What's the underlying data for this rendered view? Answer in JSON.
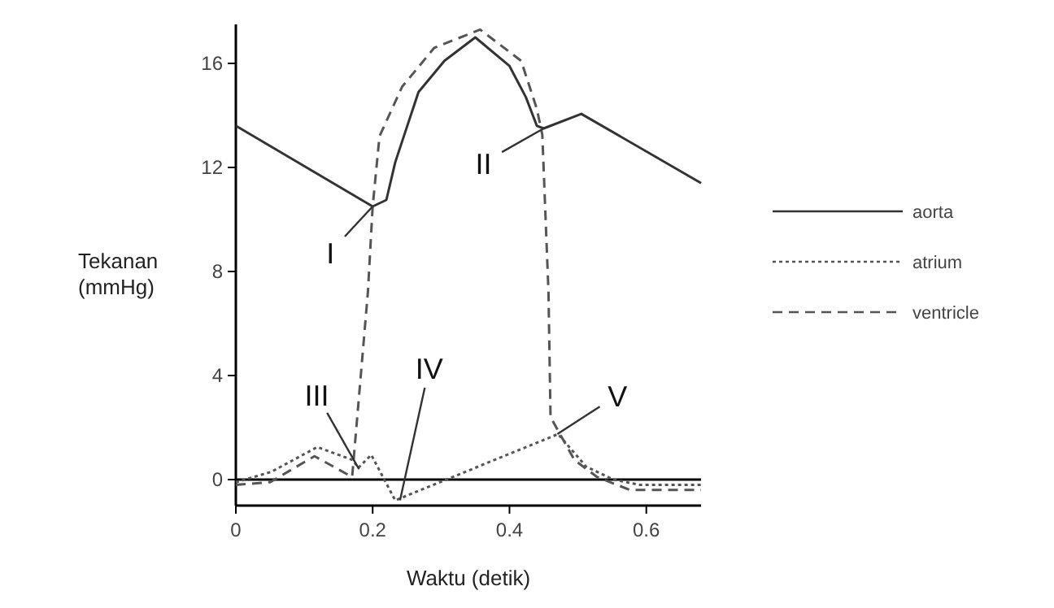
{
  "chart_data": {
    "type": "line",
    "xlabel": "Waktu (detik)",
    "ylabel": "Tekanan (mmHg)",
    "xlim": [
      0,
      0.68
    ],
    "ylim": [
      -1,
      17.5
    ],
    "xticks": [
      0,
      0.2,
      0.4,
      0.6
    ],
    "yticks": [
      0,
      4,
      8,
      12,
      16
    ],
    "grid": false,
    "legend": "right",
    "series": [
      {
        "name": "aorta",
        "color": "#333333",
        "line_style": "solid",
        "x": [
          0,
          0.2,
          0.22,
          0.233,
          0.267,
          0.305,
          0.35,
          0.4,
          0.424,
          0.44,
          0.45,
          0.505,
          0.68
        ],
        "values": [
          13.6,
          10.5,
          10.75,
          12.2,
          14.9,
          16.1,
          17.0,
          15.9,
          14.7,
          13.6,
          13.5,
          14.06,
          11.4
        ]
      },
      {
        "name": "atrium",
        "color": "#555555",
        "line_style": "dotted",
        "x": [
          0,
          0.052,
          0.119,
          0.171,
          0.179,
          0.198,
          0.233,
          0.471,
          0.512,
          0.552,
          0.59,
          0.68
        ],
        "values": [
          -0.1,
          0.3,
          1.25,
          0.75,
          0.45,
          0.95,
          -0.8,
          1.75,
          0.5,
          0,
          -0.2,
          -0.2
        ]
      },
      {
        "name": "ventricle",
        "color": "#555555",
        "line_style": "dashed",
        "x": [
          0,
          0.05,
          0.115,
          0.17,
          0.193,
          0.2,
          0.21,
          0.243,
          0.29,
          0.357,
          0.417,
          0.44,
          0.448,
          0.457,
          0.46,
          0.495,
          0.528,
          0.576,
          0.68
        ],
        "values": [
          -0.2,
          -0.1,
          0.9,
          0.1,
          7.2,
          10.5,
          13.2,
          15.1,
          16.6,
          17.3,
          16.1,
          14.25,
          13.25,
          7.2,
          2.4,
          0.75,
          0.1,
          -0.4,
          -0.4
        ]
      }
    ],
    "ref_lines": [
      {
        "axis": "y",
        "value": 0,
        "color": "#000000",
        "line_style": "solid"
      }
    ],
    "annotations": [
      {
        "text": "I",
        "x": 0.2,
        "y": 10.5
      },
      {
        "text": "II",
        "x": 0.45,
        "y": 13.5
      },
      {
        "text": "III",
        "x": 0.18,
        "y": 0.4
      },
      {
        "text": "IV",
        "x": 0.24,
        "y": -0.8
      },
      {
        "text": "V",
        "x": 0.47,
        "y": 1.75
      }
    ]
  }
}
